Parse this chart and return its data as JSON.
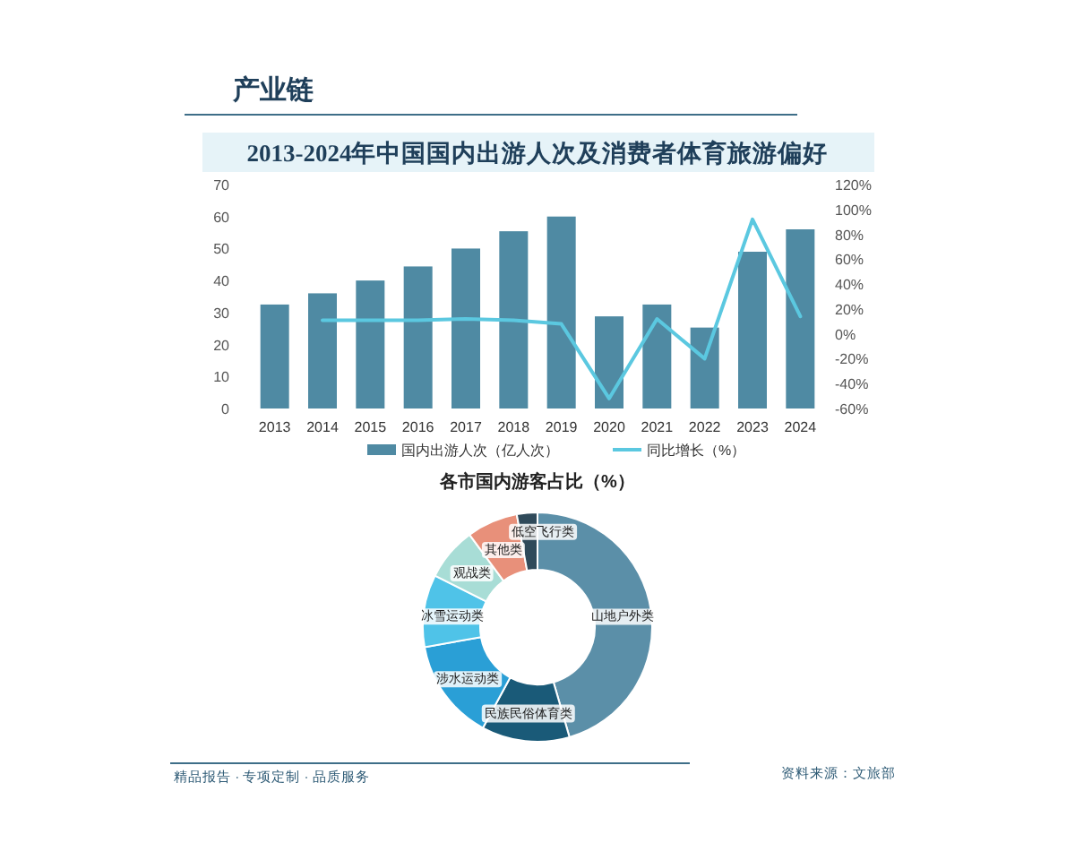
{
  "chart_data": [
    {
      "type": "bar",
      "title": "2013-2024年中国国内出游人次及消费者体育旅游偏好",
      "annotations": [
        "产业链"
      ],
      "categories": [
        "2013",
        "2014",
        "2015",
        "2016",
        "2017",
        "2018",
        "2019",
        "2020",
        "2021",
        "2022",
        "2023",
        "2024"
      ],
      "series": [
        {
          "name": "国内出游人次（亿人次）",
          "color": "#4f8aa3",
          "values": [
            32.5,
            36,
            40,
            44.4,
            50,
            55.4,
            60,
            28.8,
            32.5,
            25.3,
            49,
            56
          ]
        },
        {
          "name": "同比增长（%）",
          "type": "line",
          "axis": "y2",
          "color": "#5bc8e0",
          "values": [
            null,
            11,
            11,
            11,
            12,
            11,
            8,
            -52,
            12,
            -20,
            92,
            14
          ]
        }
      ],
      "ylim": [
        0,
        70
      ],
      "yticks": [
        0,
        10,
        20,
        30,
        40,
        50,
        60,
        70
      ],
      "y2lim": [
        -60,
        120
      ],
      "y2ticks": [
        {
          "value": -60,
          "label": "-60%"
        },
        {
          "value": -40,
          "label": "-40%"
        },
        {
          "value": -20,
          "label": "-20%"
        },
        {
          "value": 0,
          "label": "0%"
        },
        {
          "value": 20,
          "label": "20%"
        },
        {
          "value": 40,
          "label": "40%"
        },
        {
          "value": 60,
          "label": "60%"
        },
        {
          "value": 80,
          "label": "80%"
        },
        {
          "value": 100,
          "label": "100%"
        },
        {
          "value": 120,
          "label": "120%"
        }
      ],
      "grid": false,
      "legend": "bottom",
      "marker": "none",
      "line_style": "solid"
    },
    {
      "type": "donut",
      "title": "各市国内游客占比（%）",
      "categories": [
        "山地户外类",
        "民族民俗体育类",
        "涉水运动类",
        "冰雪运动类",
        "观战类",
        "其他类",
        "低空飞行类"
      ],
      "values": [
        45.5,
        12.4,
        14.3,
        10.2,
        7.5,
        7.2,
        2.9
      ],
      "colors": [
        "#5b8fa8",
        "#1a5a78",
        "#2a9fd6",
        "#4fc3e8",
        "#a8ddd6",
        "#e8907a",
        "#2f4a5a"
      ],
      "annotations": [
        "精品报告 · 专项定制 · 品质服务",
        "资料来源：文旅部"
      ]
    }
  ]
}
